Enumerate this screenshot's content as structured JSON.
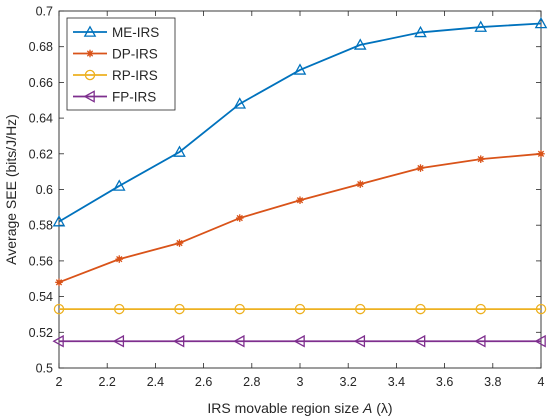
{
  "chart_data": {
    "type": "line",
    "title": "",
    "xlabel": "IRS movable region size A (λ)",
    "xlabel_parts": {
      "prefix": "IRS movable region size ",
      "var": "A",
      "suffix": " (λ)"
    },
    "ylabel": "Average SEE (bits/J/Hz)",
    "xlim": [
      2,
      4
    ],
    "ylim": [
      0.5,
      0.7
    ],
    "xticks": [
      "2",
      "2.2",
      "2.4",
      "2.6",
      "2.8",
      "3",
      "3.2",
      "3.4",
      "3.6",
      "3.8",
      "4"
    ],
    "yticks": [
      "0.5",
      "0.52",
      "0.54",
      "0.56",
      "0.58",
      "0.6",
      "0.62",
      "0.64",
      "0.66",
      "0.68",
      "0.7"
    ],
    "grid": false,
    "legend_position": "top-left",
    "x": [
      2,
      2.25,
      2.5,
      2.75,
      3,
      3.25,
      3.5,
      3.75,
      4
    ],
    "series": [
      {
        "name": "ME-IRS",
        "color": "#0072BD",
        "marker": "triangle-up",
        "values": [
          0.582,
          0.602,
          0.621,
          0.648,
          0.667,
          0.681,
          0.688,
          0.691,
          0.693
        ]
      },
      {
        "name": "DP-IRS",
        "color": "#D95319",
        "marker": "asterisk",
        "values": [
          0.548,
          0.561,
          0.57,
          0.584,
          0.594,
          0.603,
          0.612,
          0.617,
          0.62
        ]
      },
      {
        "name": "RP-IRS",
        "color": "#EDB120",
        "marker": "circle",
        "values": [
          0.533,
          0.533,
          0.533,
          0.533,
          0.533,
          0.533,
          0.533,
          0.533,
          0.533
        ]
      },
      {
        "name": "FP-IRS",
        "color": "#7E2F8E",
        "marker": "triangle-left",
        "values": [
          0.515,
          0.515,
          0.515,
          0.515,
          0.515,
          0.515,
          0.515,
          0.515,
          0.515
        ]
      }
    ]
  }
}
